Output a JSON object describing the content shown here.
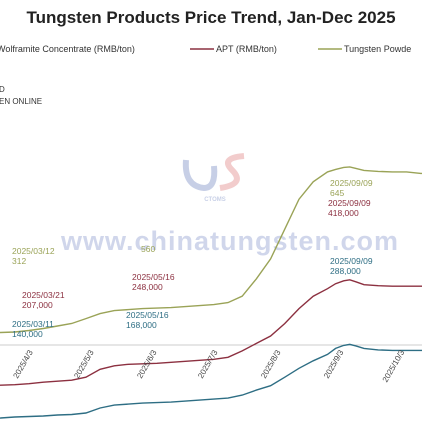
{
  "chart_data": {
    "type": "line",
    "title": "Tungsten Products Price Trend, Jan-Dec 2025",
    "source_lines": [
      "D",
      "EN ONLINE"
    ],
    "watermark": "www.chinatungsten.com",
    "watermark_logo": "CTOMS",
    "x_tick_labels": [
      "2025/3/3",
      "2025/4/3",
      "2025/5/3",
      "2025/6/3",
      "2025/7/3",
      "2025/8/3",
      "2025/9/3",
      "2025/10/3",
      "2"
    ],
    "x_range": [
      "2025-02-25",
      "2025-10-25"
    ],
    "grid": false,
    "legend_position": "top",
    "series": [
      {
        "key": "wolf",
        "name": "Wolframite Concentrate (RMB/ton)",
        "color": "#2e6e84",
        "values": [
          [
            0,
            136
          ],
          [
            7,
            137
          ],
          [
            14,
            139
          ],
          [
            21,
            140
          ],
          [
            28,
            142
          ],
          [
            35,
            143
          ],
          [
            42,
            144
          ],
          [
            49,
            146
          ],
          [
            56,
            147
          ],
          [
            63,
            150
          ],
          [
            70,
            160
          ],
          [
            77,
            166
          ],
          [
            84,
            168
          ],
          [
            91,
            170
          ],
          [
            98,
            171
          ],
          [
            105,
            172
          ],
          [
            112,
            174
          ],
          [
            119,
            176
          ],
          [
            126,
            178
          ],
          [
            133,
            180
          ],
          [
            140,
            186
          ],
          [
            147,
            196
          ],
          [
            154,
            205
          ],
          [
            161,
            222
          ],
          [
            168,
            240
          ],
          [
            175,
            255
          ],
          [
            182,
            268
          ],
          [
            186,
            280
          ],
          [
            190,
            286
          ],
          [
            193,
            288
          ],
          [
            196,
            285
          ],
          [
            200,
            280
          ],
          [
            207,
            277
          ],
          [
            214,
            276
          ],
          [
            221,
            276
          ],
          [
            228,
            276
          ],
          [
            235,
            276
          ],
          [
            240,
            276
          ]
        ]
      },
      {
        "key": "apt",
        "name": "APT (RMB/ton)",
        "color": "#8c3040",
        "values": [
          [
            0,
            204
          ],
          [
            7,
            205
          ],
          [
            14,
            205
          ],
          [
            21,
            206
          ],
          [
            28,
            207
          ],
          [
            35,
            209
          ],
          [
            42,
            212
          ],
          [
            49,
            214
          ],
          [
            56,
            216
          ],
          [
            63,
            222
          ],
          [
            70,
            238
          ],
          [
            77,
            245
          ],
          [
            84,
            248
          ],
          [
            91,
            249
          ],
          [
            98,
            250
          ],
          [
            105,
            252
          ],
          [
            112,
            254
          ],
          [
            119,
            256
          ],
          [
            126,
            258
          ],
          [
            133,
            262
          ],
          [
            140,
            275
          ],
          [
            147,
            290
          ],
          [
            154,
            305
          ],
          [
            161,
            330
          ],
          [
            168,
            360
          ],
          [
            175,
            385
          ],
          [
            182,
            400
          ],
          [
            186,
            410
          ],
          [
            190,
            416
          ],
          [
            193,
            418
          ],
          [
            196,
            414
          ],
          [
            200,
            408
          ],
          [
            207,
            406
          ],
          [
            214,
            405
          ],
          [
            221,
            405
          ],
          [
            228,
            405
          ],
          [
            235,
            405
          ],
          [
            240,
            405
          ]
        ]
      },
      {
        "key": "pow",
        "name": "Tungsten Powde",
        "color": "#9aa357",
        "values": [
          [
            0,
            312
          ],
          [
            7,
            312
          ],
          [
            14,
            312
          ],
          [
            21,
            312
          ],
          [
            28,
            313
          ],
          [
            35,
            316
          ],
          [
            42,
            320
          ],
          [
            49,
            325
          ],
          [
            56,
            330
          ],
          [
            63,
            340
          ],
          [
            70,
            350
          ],
          [
            77,
            356
          ],
          [
            84,
            358
          ],
          [
            91,
            360
          ],
          [
            98,
            361
          ],
          [
            105,
            362
          ],
          [
            112,
            364
          ],
          [
            119,
            366
          ],
          [
            126,
            368
          ],
          [
            133,
            372
          ],
          [
            140,
            385
          ],
          [
            147,
            420
          ],
          [
            154,
            460
          ],
          [
            161,
            520
          ],
          [
            168,
            580
          ],
          [
            175,
            615
          ],
          [
            182,
            635
          ],
          [
            186,
            640
          ],
          [
            190,
            644
          ],
          [
            193,
            645
          ],
          [
            196,
            642
          ],
          [
            200,
            638
          ],
          [
            207,
            636
          ],
          [
            214,
            635
          ],
          [
            221,
            635
          ],
          [
            228,
            632
          ],
          [
            235,
            630
          ],
          [
            240,
            628
          ]
        ]
      }
    ],
    "annotations": [
      {
        "series": "pow",
        "lines": [
          "2025/03/12",
          "312"
        ]
      },
      {
        "series": "pow",
        "lines": [
          "560"
        ]
      },
      {
        "series": "pow",
        "lines": [
          "2025/09/09",
          "645"
        ]
      },
      {
        "series": "apt",
        "lines": [
          "2025/03/21",
          "207,000"
        ]
      },
      {
        "series": "apt",
        "lines": [
          "2025/05/16",
          "248,000"
        ]
      },
      {
        "series": "apt",
        "lines": [
          "2025/09/09",
          "418,000"
        ]
      },
      {
        "series": "wolf",
        "lines": [
          "2025/03/11",
          "140,000"
        ]
      },
      {
        "series": "wolf",
        "lines": [
          "2025/05/16",
          "168,000"
        ]
      },
      {
        "series": "wolf",
        "lines": [
          "2025/09/09",
          "288,000"
        ]
      }
    ]
  }
}
